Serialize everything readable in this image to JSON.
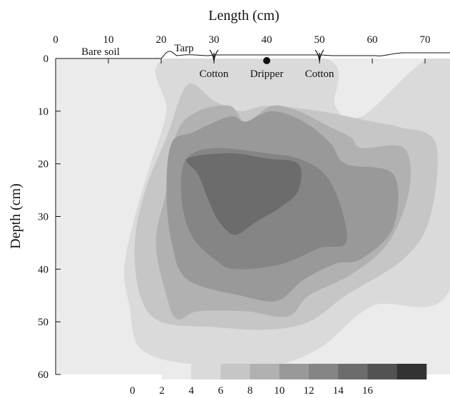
{
  "chart_data": {
    "type": "heatmap",
    "title": "",
    "xlabel": "Length (cm)",
    "ylabel": "Depth (cm)",
    "x_ticks": [
      0,
      10,
      20,
      30,
      40,
      50,
      60,
      70
    ],
    "y_ticks": [
      0,
      10,
      20,
      30,
      40,
      50,
      60
    ],
    "xlim": [
      0,
      75
    ],
    "ylim": [
      0,
      60
    ],
    "y_inverted": true,
    "x_axis_position": "top",
    "colorbar": {
      "tick_labels": [
        "0",
        "2",
        "4",
        "6",
        "8",
        "10",
        "12",
        "14",
        "16"
      ],
      "levels": [
        0,
        2,
        4,
        6,
        8,
        10,
        12,
        14,
        16,
        18
      ],
      "colors": [
        "#ffffff",
        "#ebebeb",
        "#dadada",
        "#c6c6c6",
        "#b1b1b1",
        "#999999",
        "#858585",
        "#6c6c6c",
        "#525252",
        "#333333"
      ],
      "position": "bottom"
    },
    "annotations": {
      "bare_soil": "Bare soil",
      "tarp": "Tarp",
      "cotton_left": "Cotton",
      "dripper": "Dripper",
      "cotton_right": "Cotton"
    },
    "markers": [
      {
        "label": "Cotton",
        "x": 30,
        "symbol": "plant"
      },
      {
        "label": "Dripper",
        "x": 40,
        "symbol": "dot"
      },
      {
        "label": "Cotton",
        "x": 50,
        "symbol": "plant"
      }
    ],
    "contour_regions": [
      {
        "level": 2,
        "points": [
          [
            10,
            0
          ],
          [
            20,
            0
          ],
          [
            21,
            10
          ],
          [
            20,
            20
          ],
          [
            17.5,
            30
          ],
          [
            13,
            40
          ],
          [
            11,
            50
          ],
          [
            15,
            58
          ],
          [
            30,
            60
          ],
          [
            60,
            60
          ],
          [
            75,
            58
          ],
          [
            75,
            0
          ],
          [
            52,
            0
          ],
          [
            52,
            10
          ],
          [
            40,
            10
          ],
          [
            30,
            10
          ],
          [
            22,
            5
          ],
          [
            12,
            10
          ],
          [
            9,
            20
          ],
          [
            7,
            35
          ],
          [
            10,
            50
          ],
          [
            12,
            55
          ],
          [
            11,
            60
          ],
          [
            2,
            60
          ],
          [
            2,
            50
          ],
          [
            2,
            40
          ],
          [
            6,
            30
          ],
          [
            7,
            20
          ]
        ]
      },
      {
        "level": 4,
        "points": [
          [
            21,
            0
          ],
          [
            51,
            0
          ],
          [
            53,
            9
          ],
          [
            58,
            11
          ],
          [
            75,
            0
          ],
          [
            75,
            43
          ],
          [
            60,
            47
          ],
          [
            50,
            55
          ],
          [
            40,
            58.5
          ],
          [
            25,
            58
          ],
          [
            16,
            55
          ],
          [
            14,
            47
          ],
          [
            13,
            40
          ],
          [
            15,
            30
          ],
          [
            18,
            20
          ],
          [
            21,
            10
          ]
        ]
      },
      {
        "level": 6,
        "points": [
          [
            25,
            5
          ],
          [
            30,
            8
          ],
          [
            35,
            10
          ],
          [
            40,
            9
          ],
          [
            50,
            10
          ],
          [
            60,
            12
          ],
          [
            65,
            13
          ],
          [
            72,
            16
          ],
          [
            71,
            30
          ],
          [
            66,
            38
          ],
          [
            55,
            45
          ],
          [
            48,
            50
          ],
          [
            40,
            51.5
          ],
          [
            30,
            51
          ],
          [
            20,
            50
          ],
          [
            16,
            45
          ],
          [
            15,
            35
          ],
          [
            17,
            25
          ],
          [
            21,
            15
          ]
        ]
      },
      {
        "level": 8,
        "points": [
          [
            27,
            10
          ],
          [
            33,
            9
          ],
          [
            36,
            12
          ],
          [
            41,
            9
          ],
          [
            46,
            10
          ],
          [
            52,
            13
          ],
          [
            56,
            15
          ],
          [
            58,
            17
          ],
          [
            66,
            17
          ],
          [
            67,
            25
          ],
          [
            63,
            35
          ],
          [
            56,
            41
          ],
          [
            48,
            45
          ],
          [
            44,
            49
          ],
          [
            36,
            48
          ],
          [
            27,
            48
          ],
          [
            23,
            49.5
          ],
          [
            21,
            45
          ],
          [
            19,
            35
          ],
          [
            21,
            25
          ],
          [
            23,
            14
          ]
        ]
      },
      {
        "level": 10,
        "points": [
          [
            26,
            14
          ],
          [
            33,
            11
          ],
          [
            36,
            12
          ],
          [
            41,
            10
          ],
          [
            47,
            12
          ],
          [
            52,
            16
          ],
          [
            55,
            20
          ],
          [
            64,
            22
          ],
          [
            64,
            32
          ],
          [
            58,
            38
          ],
          [
            53,
            39
          ],
          [
            47,
            42
          ],
          [
            42,
            46
          ],
          [
            35,
            45
          ],
          [
            25,
            42
          ],
          [
            22,
            35
          ],
          [
            21,
            25
          ],
          [
            22,
            16
          ]
        ]
      },
      {
        "level": 12,
        "points": [
          [
            26,
            18
          ],
          [
            31,
            17
          ],
          [
            40,
            18
          ],
          [
            46,
            19
          ],
          [
            51,
            22
          ],
          [
            54,
            28
          ],
          [
            55,
            35
          ],
          [
            50,
            36
          ],
          [
            43,
            39
          ],
          [
            34,
            40
          ],
          [
            30,
            38
          ],
          [
            26,
            34
          ],
          [
            24,
            28
          ],
          [
            24,
            21
          ]
        ]
      },
      {
        "level": 14,
        "points": [
          [
            25,
            19
          ],
          [
            33,
            18
          ],
          [
            40,
            19
          ],
          [
            46,
            20
          ],
          [
            46,
            25
          ],
          [
            43,
            28
          ],
          [
            38,
            31
          ],
          [
            34,
            33.5
          ],
          [
            31,
            31
          ],
          [
            29,
            27
          ],
          [
            27,
            22
          ]
        ]
      }
    ]
  }
}
